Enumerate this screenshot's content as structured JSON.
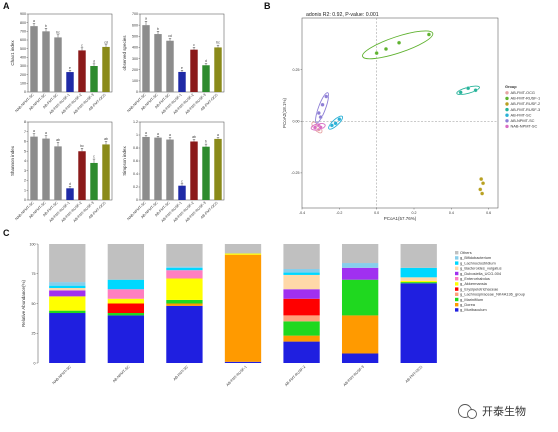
{
  "figure": {
    "panels": {
      "a": "A",
      "b": "B",
      "c": "C"
    },
    "watermark": "开泰生物",
    "colors": {
      "gray": "#8c8c8c",
      "darkred": "#8b1a1a",
      "navy": "#1f2aa6",
      "green": "#2e8b2e",
      "olive": "#8a8a1a"
    }
  },
  "chart_data": [
    {
      "id": "a1",
      "type": "bar",
      "ylabel": "Chao1 index",
      "ylim": [
        0,
        900
      ],
      "yticks": [
        0,
        100,
        200,
        300,
        400,
        500,
        600,
        700,
        800,
        900
      ],
      "categories": [
        "NAB-NPMT-SC",
        "AB-NPMT-SC",
        "AB-FMT-SC",
        "AB-FMT-RUSF-1",
        "AB-FMT-RUSF-2",
        "AB-FMT-RUSF-3",
        "AB-FMT-OCG"
      ],
      "values": [
        760,
        700,
        630,
        230,
        480,
        300,
        520
      ],
      "errors": [
        30,
        35,
        30,
        20,
        30,
        25,
        25
      ],
      "letters": [
        "a",
        "b",
        "bc",
        "e",
        "c",
        "d",
        "cd"
      ],
      "colors": [
        "#8c8c8c",
        "#8c8c8c",
        "#8c8c8c",
        "#1f2aa6",
        "#8b1a1a",
        "#2e8b2e",
        "#8a8a1a"
      ]
    },
    {
      "id": "a2",
      "type": "bar",
      "ylabel": "observed species",
      "ylim": [
        0,
        700
      ],
      "yticks": [
        0,
        100,
        200,
        300,
        400,
        500,
        600,
        700
      ],
      "categories": [
        "NAB-NPMT-SC",
        "AB-NPMT-SC",
        "AB-FMT-SC",
        "AB-FMT-RUSF-1",
        "AB-FMT-RUSF-2",
        "AB-FMT-RUSF-3",
        "AB-FMT-OCG"
      ],
      "values": [
        600,
        520,
        460,
        180,
        380,
        240,
        400
      ],
      "errors": [
        35,
        25,
        20,
        15,
        20,
        15,
        20
      ],
      "letters": [
        "a",
        "b",
        "cd",
        "e",
        "c",
        "d",
        "bc"
      ],
      "colors": [
        "#8c8c8c",
        "#8c8c8c",
        "#8c8c8c",
        "#1f2aa6",
        "#8b1a1a",
        "#2e8b2e",
        "#8a8a1a"
      ]
    },
    {
      "id": "a3",
      "type": "bar",
      "ylabel": "Shannon index",
      "ylim": [
        0,
        8
      ],
      "yticks": [
        0,
        1,
        2,
        3,
        4,
        5,
        6,
        7,
        8
      ],
      "categories": [
        "NAB-NPMT-SC",
        "AB-NPMT-SC",
        "AB-FMT-SC",
        "AB-FMT-RUSF-1",
        "AB-FMT-RUSF-2",
        "AB-FMT-RUSF-3",
        "AB-FMT-OCG"
      ],
      "values": [
        6.5,
        6.3,
        5.5,
        1.2,
        5.0,
        3.8,
        5.7
      ],
      "errors": [
        0.3,
        0.3,
        0.4,
        0.2,
        0.3,
        0.4,
        0.3
      ],
      "letters": [
        "a",
        "a",
        "ab",
        "d",
        "bc",
        "c",
        "ab"
      ],
      "colors": [
        "#8c8c8c",
        "#8c8c8c",
        "#8c8c8c",
        "#1f2aa6",
        "#8b1a1a",
        "#2e8b2e",
        "#8a8a1a"
      ]
    },
    {
      "id": "a4",
      "type": "bar",
      "ylabel": "Simpson index",
      "ylim": [
        0,
        1.2
      ],
      "yticks": [
        0,
        0.2,
        0.4,
        0.6,
        0.8,
        1.0,
        1.2
      ],
      "categories": [
        "NAB-NPMT-SC",
        "AB-NPMT-SC",
        "AB-FMT-SC",
        "AB-FMT-RUSF-1",
        "AB-FMT-RUSF-2",
        "AB-FMT-RUSF-3",
        "AB-FMT-OCG"
      ],
      "values": [
        0.97,
        0.96,
        0.93,
        0.22,
        0.9,
        0.82,
        0.94
      ],
      "errors": [
        0.02,
        0.02,
        0.03,
        0.03,
        0.03,
        0.04,
        0.02
      ],
      "letters": [
        "a",
        "a",
        "a",
        "c",
        "ab",
        "b",
        "a"
      ],
      "colors": [
        "#8c8c8c",
        "#8c8c8c",
        "#8c8c8c",
        "#1f2aa6",
        "#8b1a1a",
        "#2e8b2e",
        "#8a8a1a"
      ]
    },
    {
      "id": "b",
      "type": "scatter",
      "title": "adonis R2: 0.92, P-value: 0.001",
      "xlabel": "PCoA1(57.76%)",
      "ylabel": "PCoA2(18.1%)",
      "xlim": [
        -0.4,
        0.65
      ],
      "ylim": [
        -0.42,
        0.5
      ],
      "xticks": [
        -0.4,
        -0.2,
        0.0,
        0.2,
        0.4,
        0.6
      ],
      "yticks": [
        -0.25,
        0.0,
        0.25
      ],
      "legend_title": "Group",
      "legend_position": "right",
      "series": [
        {
          "name": "AB-FMT-OCG",
          "color": "#e6a4a4",
          "ellipse": true,
          "points": [
            [
              -0.33,
              -0.03
            ],
            [
              -0.32,
              -0.02
            ],
            [
              -0.31,
              -0.04
            ]
          ]
        },
        {
          "name": "AB-FMT-RUSF-1",
          "color": "#5fb22f",
          "ellipse": true,
          "points": [
            [
              0.0,
              0.33
            ],
            [
              0.05,
              0.35
            ],
            [
              0.12,
              0.38
            ],
            [
              0.28,
              0.42
            ]
          ]
        },
        {
          "name": "AB-FMT-RUSF-2",
          "color": "#b8a020",
          "ellipse": false,
          "points": [
            [
              0.56,
              -0.28
            ],
            [
              0.57,
              -0.3
            ],
            [
              0.555,
              -0.33
            ],
            [
              0.565,
              -0.35
            ]
          ]
        },
        {
          "name": "AB-FMT-RUSF-3",
          "color": "#26b39a",
          "ellipse": true,
          "points": [
            [
              0.45,
              0.14
            ],
            [
              0.49,
              0.16
            ],
            [
              0.53,
              0.15
            ]
          ]
        },
        {
          "name": "AB-FMT-SC",
          "color": "#2ab0d6",
          "ellipse": true,
          "points": [
            [
              -0.22,
              -0.01
            ],
            [
              -0.2,
              0.01
            ],
            [
              -0.24,
              -0.02
            ]
          ]
        },
        {
          "name": "AB-NPMT-SC",
          "color": "#8e7fd6",
          "ellipse": true,
          "points": [
            [
              -0.31,
              0.04
            ],
            [
              -0.29,
              0.08
            ],
            [
              -0.27,
              0.12
            ],
            [
              -0.3,
              0.02
            ]
          ]
        },
        {
          "name": "NAB-NPMT-SC",
          "color": "#d96dc4",
          "ellipse": true,
          "points": [
            [
              -0.33,
              -0.03
            ],
            [
              -0.31,
              -0.02
            ],
            [
              -0.3,
              -0.03
            ]
          ]
        }
      ]
    },
    {
      "id": "c",
      "type": "bar",
      "stacked": true,
      "ylabel": "Relative Abundance(%)",
      "ylim": [
        0,
        100
      ],
      "yticks": [
        0,
        25,
        50,
        75,
        100
      ],
      "categories": [
        "NAB-NPMT-SC",
        "AB-NPMT-SC",
        "AB-FMT-SC",
        "AB-FMT-RUSF-1",
        "AB-FMT-RUSF-2",
        "AB-FMT-RUSF-3",
        "AB-FMT-OCG"
      ],
      "legend_position": "right",
      "series": [
        {
          "name": "g_Muribaculum",
          "color": "#1f1fe0",
          "values": [
            42,
            40,
            48,
            1,
            18,
            8,
            67
          ]
        },
        {
          "name": "g_Dorea",
          "color": "#ff9a00",
          "values": [
            0,
            0,
            2,
            90,
            5,
            32,
            0
          ]
        },
        {
          "name": "g_Marinifilum",
          "color": "#1fd81f",
          "values": [
            2,
            2,
            3,
            0,
            12,
            30,
            1
          ]
        },
        {
          "name": "g_Lachnospiraceae_NK4A136_group",
          "color": "#ffa07a",
          "values": [
            0,
            0,
            0,
            0,
            5,
            0,
            0
          ]
        },
        {
          "name": "g_Erysipelotrichaceae",
          "color": "#ff0000",
          "values": [
            0,
            8,
            0,
            0,
            14,
            0,
            0
          ]
        },
        {
          "name": "g_Akkermansia",
          "color": "#ffff00",
          "values": [
            12,
            4,
            18,
            1,
            0,
            0,
            1
          ]
        },
        {
          "name": "g_Enterorhabdus",
          "color": "#ff7fc0",
          "values": [
            0,
            8,
            7,
            0,
            0,
            0,
            0
          ]
        },
        {
          "name": "g_Dubosiella_UCG-004",
          "color": "#a030f0",
          "values": [
            5,
            0,
            0,
            0,
            8,
            10,
            0
          ]
        },
        {
          "name": "g_Bacteroides_vulgatus",
          "color": "#ffd8a8",
          "values": [
            2,
            0,
            0,
            0,
            12,
            0,
            3
          ]
        },
        {
          "name": "g_Lachnoclostridium",
          "color": "#00d8ff",
          "values": [
            2,
            8,
            2,
            0,
            2,
            0,
            8
          ]
        },
        {
          "name": "g_Bifidobacterium",
          "color": "#87ceeb",
          "values": [
            3,
            0,
            1,
            0,
            3,
            4,
            0
          ]
        },
        {
          "name": "Others",
          "color": "#c0c0c0",
          "values": [
            32,
            30,
            19,
            8,
            21,
            16,
            20
          ]
        }
      ]
    }
  ]
}
